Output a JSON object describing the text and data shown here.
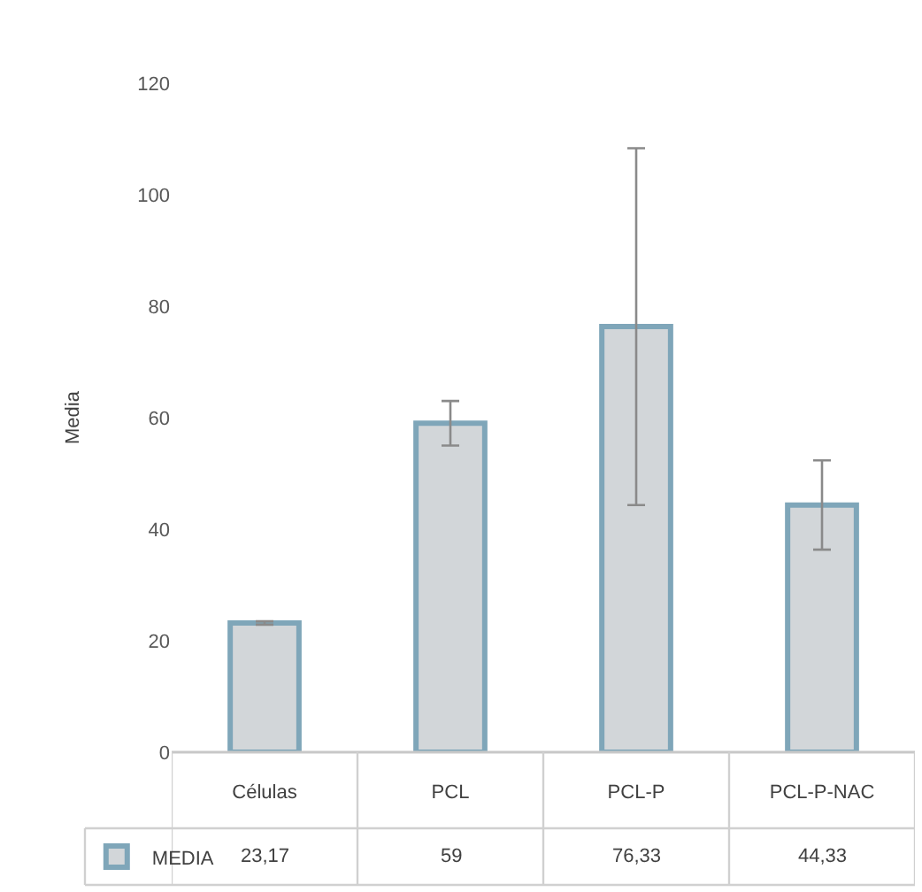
{
  "chart_data": {
    "type": "bar",
    "ylabel": "Media",
    "categories": [
      "Células",
      "PCL",
      "PCL-P",
      "PCL-P-NAC"
    ],
    "series": [
      {
        "name": "MEDIA",
        "color": "#7fa6b9",
        "values": [
          23.17,
          59,
          76.33,
          44.33
        ],
        "value_labels": [
          "23,17",
          "59",
          "76,33",
          "44,33"
        ],
        "errors": [
          0.3,
          4,
          32,
          8
        ]
      }
    ],
    "ylim": [
      0,
      120
    ],
    "yticks": [
      0,
      20,
      40,
      60,
      80,
      100,
      120
    ],
    "legend": "bottom"
  }
}
